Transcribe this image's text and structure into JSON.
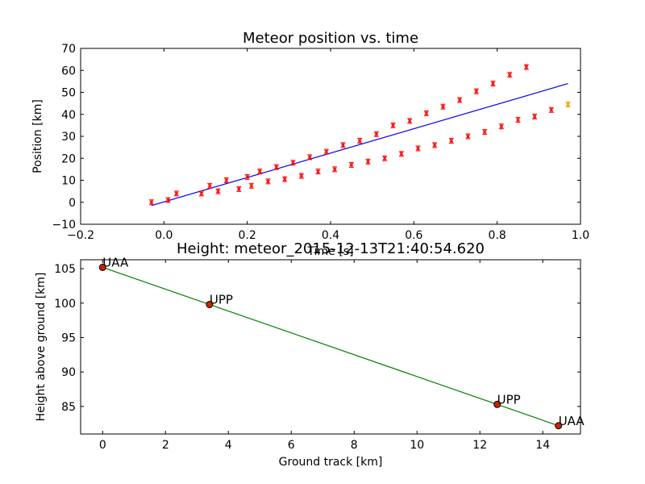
{
  "chart_data": [
    {
      "type": "scatter",
      "title": "Meteor position vs. time",
      "xlabel": "Time [s]",
      "ylabel": "Position [km]",
      "xlim": [
        -0.2,
        1.0
      ],
      "ylim": [
        -10,
        70
      ],
      "xticks": [
        "−0.2",
        "0.0",
        "0.2",
        "0.4",
        "0.6",
        "0.8",
        "1.0"
      ],
      "yticks": [
        "−10",
        "0",
        "10",
        "20",
        "30",
        "40",
        "50",
        "60",
        "70"
      ],
      "grid": false,
      "series": [
        {
          "color": "#ff0000",
          "marker": "x-errorbar",
          "x": [
            -0.03,
            0.01,
            0.03,
            0.09,
            0.11,
            0.13,
            0.15,
            0.18,
            0.2,
            0.21,
            0.23,
            0.25,
            0.27,
            0.29,
            0.31,
            0.33,
            0.35,
            0.37,
            0.39,
            0.41,
            0.43,
            0.45,
            0.47,
            0.49,
            0.51,
            0.53,
            0.55,
            0.57,
            0.59,
            0.61,
            0.63,
            0.65,
            0.67,
            0.69,
            0.71,
            0.73,
            0.75,
            0.77,
            0.79,
            0.81,
            0.83,
            0.85,
            0.87,
            0.89,
            0.93
          ],
          "y": [
            0,
            1,
            4,
            4,
            7.5,
            5,
            10,
            6,
            11.5,
            7.5,
            14,
            9.5,
            16,
            10.5,
            18,
            12,
            20.5,
            14,
            23,
            15,
            26,
            17,
            28,
            18.5,
            31,
            20,
            35,
            22,
            37,
            24.5,
            40.5,
            26,
            43.5,
            28,
            46.5,
            30,
            50.5,
            32,
            54,
            34.5,
            58,
            37.5,
            61.5,
            39,
            42
          ]
        },
        {
          "color": "#e8a000",
          "marker": "x-errorbar",
          "x": [
            0.97
          ],
          "y": [
            44.5
          ]
        }
      ],
      "fit_line": {
        "color": "#0000ff",
        "x": [
          -0.03,
          0.97
        ],
        "y": [
          -1.5,
          54
        ]
      }
    },
    {
      "type": "line",
      "title": "Height: meteor_2015-12-13T21:40:54.620",
      "xlabel": "Ground track [km]",
      "ylabel": "Height above ground [km]",
      "xlim": [
        -0.7,
        15.2
      ],
      "ylim": [
        81,
        106.3
      ],
      "xticks": [
        "0",
        "2",
        "4",
        "6",
        "8",
        "10",
        "12",
        "14"
      ],
      "yticks": [
        "85",
        "90",
        "95",
        "100",
        "105"
      ],
      "grid": false,
      "line_color": "#008000",
      "marker_color": "#cc2200",
      "points": [
        {
          "label": "UAA",
          "x": 0,
          "y": 105.2
        },
        {
          "label": "UPP",
          "x": 3.4,
          "y": 99.8
        },
        {
          "label": "UPP",
          "x": 12.55,
          "y": 85.3
        },
        {
          "label": "UAA",
          "x": 14.5,
          "y": 82.2
        }
      ]
    }
  ]
}
